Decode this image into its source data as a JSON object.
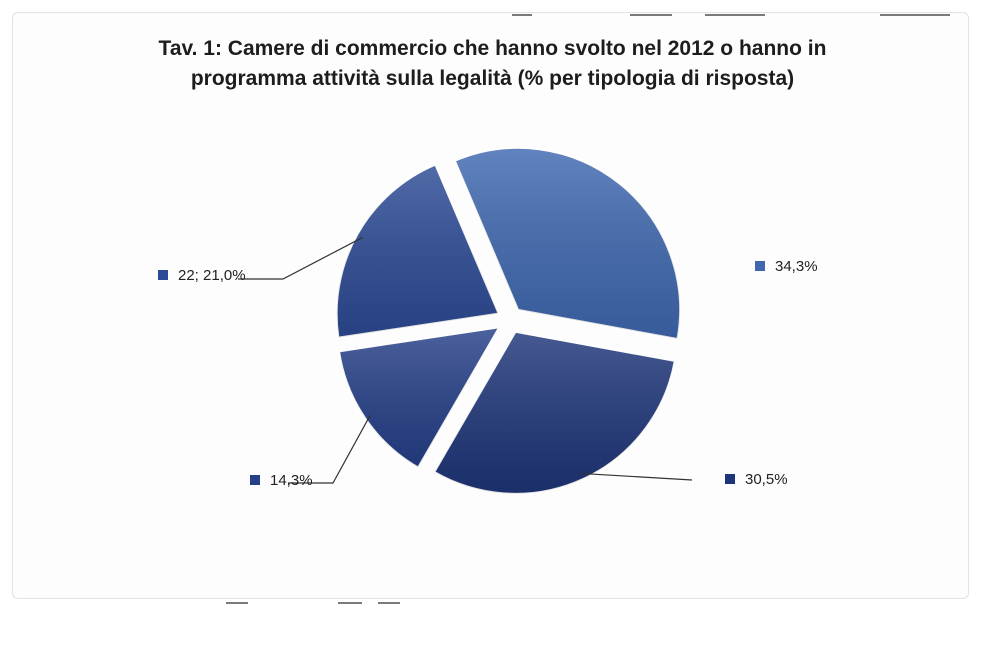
{
  "chart_data": {
    "type": "pie",
    "title": "Tav. 1: Camere di commercio che hanno svolto nel 2012 o hanno in programma attività sulla legalità (% per tipologia di risposta)",
    "slices": [
      {
        "label": "34,3%",
        "value": 34.3,
        "color": "#3f68b0"
      },
      {
        "label": "30,5%",
        "value": 30.5,
        "color": "#1e3579"
      },
      {
        "label": "14,3%",
        "value": 14.3,
        "color": "#253f88"
      },
      {
        "label": "22; 21,0%",
        "value": 21.0,
        "color": "#2c4a95"
      }
    ],
    "legend": "none",
    "exploded": true
  }
}
